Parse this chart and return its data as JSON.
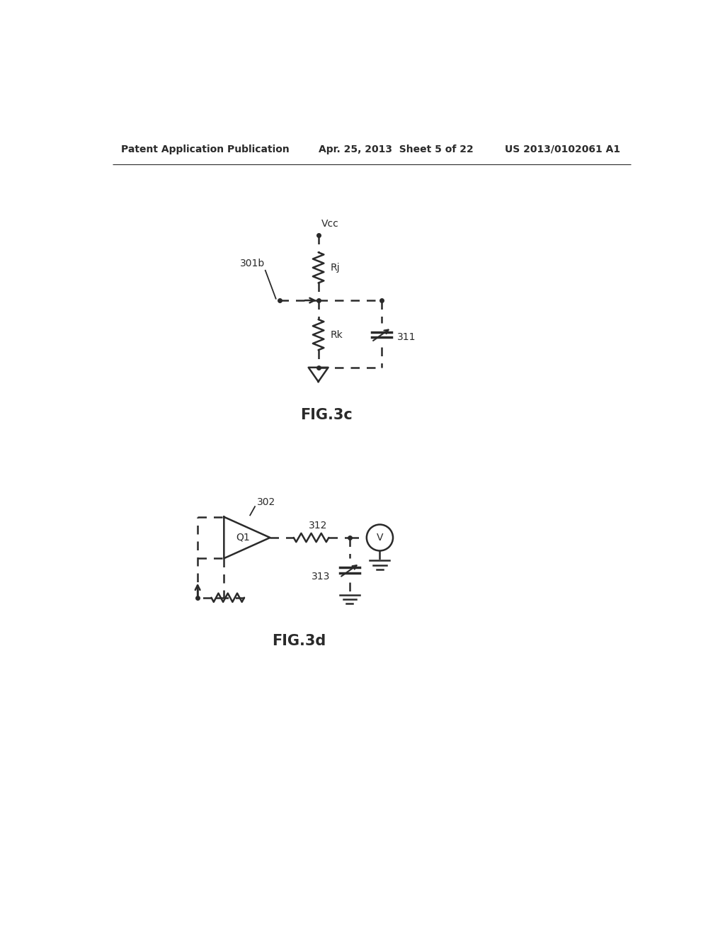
{
  "bg_color": "#ffffff",
  "line_color": "#2a2a2a",
  "line_width": 1.8,
  "header_left": "Patent Application Publication",
  "header_mid": "Apr. 25, 2013  Sheet 5 of 22",
  "header_right": "US 2013/0102061 A1",
  "fig3c_label": "FIG.3c",
  "fig3d_label": "FIG.3d",
  "label_301b": "301b",
  "label_302": "302",
  "label_311": "311",
  "label_312": "312",
  "label_313": "313",
  "label_Vcc": "Vcc",
  "label_Rj": "Rj",
  "label_Rk": "Rk",
  "label_Q1": "Q1",
  "label_V": "V"
}
